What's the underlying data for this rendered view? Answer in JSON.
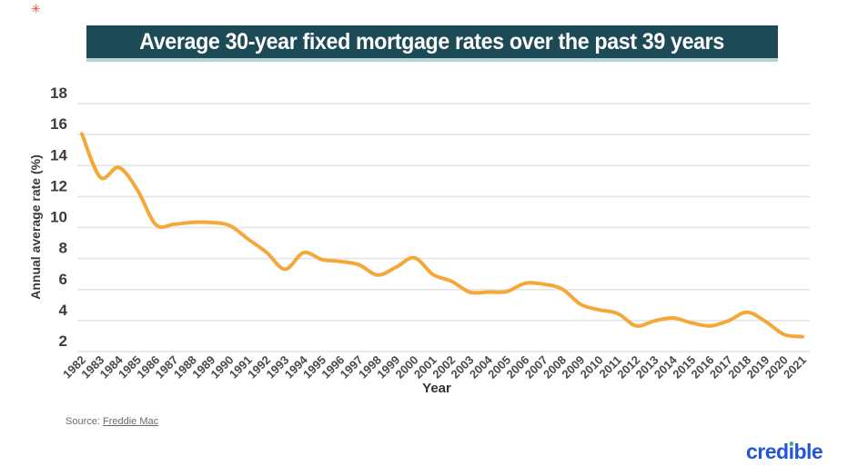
{
  "page": {
    "corner_mark": "✳"
  },
  "header": {
    "title": "Average 30-year fixed mortgage rates over the past 39 years",
    "background": "#1d4a57",
    "underline_color": "#b8d1d5",
    "text_color": "#ffffff"
  },
  "chart_data": {
    "type": "line",
    "title": "Average 30-year fixed mortgage rates over the past 39 years",
    "xlabel": "Year",
    "ylabel": "Annual average rate (%)",
    "x": [
      1982,
      1983,
      1984,
      1985,
      1986,
      1987,
      1988,
      1989,
      1990,
      1991,
      1992,
      1993,
      1994,
      1995,
      1996,
      1997,
      1998,
      1999,
      2000,
      2001,
      2002,
      2003,
      2004,
      2005,
      2006,
      2007,
      2008,
      2009,
      2010,
      2011,
      2012,
      2013,
      2014,
      2015,
      2016,
      2017,
      2018,
      2019,
      2020,
      2021
    ],
    "values": [
      16.04,
      13.24,
      13.88,
      12.43,
      10.19,
      10.21,
      10.34,
      10.32,
      10.13,
      9.25,
      8.39,
      7.31,
      8.38,
      7.93,
      7.81,
      7.6,
      6.94,
      7.44,
      8.05,
      6.97,
      6.54,
      5.83,
      5.84,
      5.87,
      6.41,
      6.34,
      6.03,
      5.04,
      4.69,
      4.45,
      3.66,
      3.98,
      4.17,
      3.85,
      3.65,
      3.99,
      4.54,
      3.94,
      3.1,
      2.96
    ],
    "ylim": [
      2,
      18
    ],
    "yticks": [
      18,
      16,
      14,
      12,
      10,
      8,
      6,
      4,
      2
    ],
    "grid": "horizontal",
    "line_color": "#f5a83a",
    "legend": "none"
  },
  "source": {
    "prefix": "Source: ",
    "link": "Freddie Mac"
  },
  "logo": {
    "text": "credible",
    "color": "#2157d7",
    "dot_color": "#43ad6e"
  }
}
